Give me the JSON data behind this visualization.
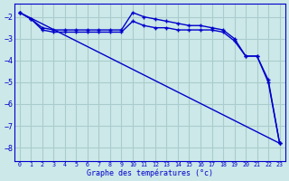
{
  "xlabel": "Graphe des températures (°c)",
  "background_color": "#cce8e8",
  "grid_color": "#aacccc",
  "line_color": "#0000cc",
  "xlim": [
    -0.5,
    23.5
  ],
  "ylim": [
    -8.6,
    -1.4
  ],
  "yticks": [
    -8,
    -7,
    -6,
    -5,
    -4,
    -3,
    -2
  ],
  "xticks": [
    0,
    1,
    2,
    3,
    4,
    5,
    6,
    7,
    8,
    9,
    10,
    11,
    12,
    13,
    14,
    15,
    16,
    17,
    18,
    19,
    20,
    21,
    22,
    23
  ],
  "line1_x": [
    0,
    1,
    2,
    3,
    4,
    5,
    6,
    7,
    8,
    9,
    10,
    11,
    12,
    13,
    14,
    15,
    16,
    17,
    18,
    19,
    20,
    21,
    22,
    23
  ],
  "line1_y": [
    -1.8,
    -2.1,
    -2.5,
    -2.6,
    -2.6,
    -2.6,
    -2.6,
    -2.6,
    -2.6,
    -2.6,
    -1.8,
    -2.0,
    -2.1,
    -2.2,
    -2.3,
    -2.4,
    -2.4,
    -2.5,
    -2.6,
    -3.0,
    -3.8,
    -3.8,
    -4.9,
    -7.8
  ],
  "line2_x": [
    0,
    1,
    2,
    3,
    4,
    5,
    6,
    7,
    8,
    9,
    10,
    11,
    12,
    13,
    14,
    15,
    16,
    17,
    18,
    19,
    20,
    21,
    22,
    23
  ],
  "line2_y": [
    -1.8,
    -2.1,
    -2.6,
    -2.7,
    -2.7,
    -2.7,
    -2.7,
    -2.7,
    -2.7,
    -2.7,
    -2.2,
    -2.4,
    -2.5,
    -2.5,
    -2.6,
    -2.6,
    -2.6,
    -2.6,
    -2.7,
    -3.1,
    -3.8,
    -3.8,
    -5.0,
    -7.8
  ],
  "line3_x": [
    0,
    23
  ],
  "line3_y": [
    -1.8,
    -7.8
  ]
}
